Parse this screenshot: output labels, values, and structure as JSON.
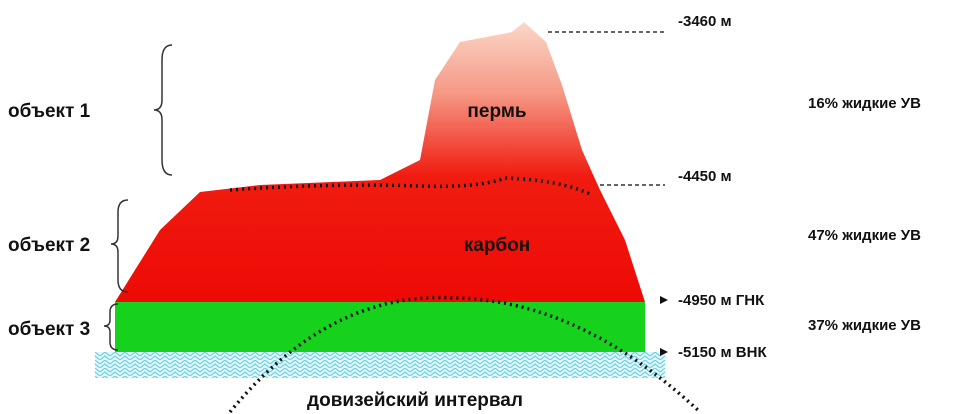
{
  "objects": [
    {
      "label": "объект 1"
    },
    {
      "label": "объект 2"
    },
    {
      "label": "объект 3"
    }
  ],
  "layers": [
    {
      "label": "пермь"
    },
    {
      "label": "карбон"
    },
    {
      "label": "довизейский интервал"
    }
  ],
  "depths": [
    {
      "label": "-3460 м"
    },
    {
      "label": "-4450 м"
    },
    {
      "label": "-4950 м ГНК"
    },
    {
      "label": "-5150 м ВНК"
    }
  ],
  "shares": [
    {
      "label": "16% жидкие УВ"
    },
    {
      "label": "47% жидкие УВ"
    },
    {
      "label": "37% жидкие УВ"
    }
  ]
}
